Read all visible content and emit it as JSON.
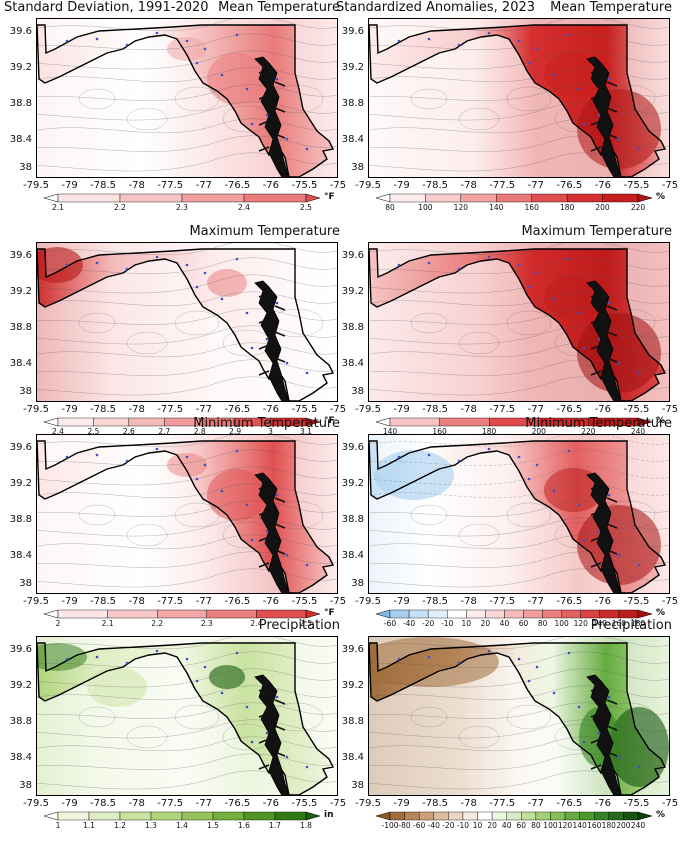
{
  "header": {
    "left_title": "Standard Deviation, 1991-2020",
    "right_title": "Standardized Anomalies, 2023"
  },
  "axes": {
    "x_ticks": [
      "-79.5",
      "-79",
      "-78.5",
      "-78",
      "-77.5",
      "-77",
      "-76.5",
      "-76",
      "-75.5",
      "-75"
    ],
    "y_ticks": [
      "39.6",
      "39.2",
      "38.8",
      "38.4",
      "38"
    ]
  },
  "panels": [
    {
      "row": 0,
      "col": 0,
      "variable": "Mean Temperature",
      "unit": "°F",
      "colorbar": [
        "2.1",
        "2.2",
        "2.3",
        "2.4",
        "2.5"
      ],
      "colors": [
        "#ffffff",
        "#fbe3e3",
        "#f6c4c4",
        "#f0a0a0",
        "#e97a7a",
        "#e05050"
      ],
      "style": "lowhigh-east"
    },
    {
      "row": 0,
      "col": 1,
      "variable": "Mean Temperature",
      "unit": "%",
      "colorbar": [
        "80",
        "100",
        "120",
        "140",
        "160",
        "180",
        "200",
        "220"
      ],
      "colors": [
        "#ffffff",
        "#fdecec",
        "#f8cccc",
        "#f1a3a3",
        "#ea7a7a",
        "#e04e4e",
        "#d62f2f",
        "#c81e1e",
        "#b01515"
      ],
      "style": "hot-east"
    },
    {
      "row": 1,
      "col": 0,
      "variable": "Maximum Temperature",
      "unit": "°F",
      "colorbar": [
        "2.4",
        "2.5",
        "2.6",
        "2.7",
        "2.8",
        "2.9",
        "3",
        "3.1"
      ],
      "colors": [
        "#ffffff",
        "#fdecec",
        "#f9d6d6",
        "#f4b9b9",
        "#ee9a9a",
        "#e77777",
        "#dd5252",
        "#cf3030",
        "#b81818"
      ],
      "style": "hot-west"
    },
    {
      "row": 1,
      "col": 1,
      "variable": "Maximum Temperature",
      "unit": "%",
      "colorbar": [
        "140",
        "160",
        "180",
        "200",
        "220",
        "240"
      ],
      "colors": [
        "#ffffff",
        "#f6c4c4",
        "#ea7f7f",
        "#e04a4a",
        "#d22a2a",
        "#bf1b1b",
        "#a01010"
      ],
      "style": "hot-east"
    },
    {
      "row": 2,
      "col": 0,
      "variable": "Minimum Temperature",
      "unit": "°F",
      "colorbar": [
        "2",
        "2.1",
        "2.2",
        "2.3",
        "2.4",
        "2.5"
      ],
      "colors": [
        "#ffffff",
        "#fde6e6",
        "#f8c8c8",
        "#f2a6a6",
        "#ea7e7e",
        "#e05050",
        "#cf2f2f"
      ],
      "style": "lowhigh-east"
    },
    {
      "row": 2,
      "col": 1,
      "variable": "Minimum Temperature",
      "unit": "%",
      "colorbar": [
        "-60",
        "-40",
        "-20",
        "-10",
        "10",
        "20",
        "40",
        "60",
        "80",
        "100",
        "120",
        "140",
        "160",
        "180"
      ],
      "colors": [
        "#7fb9e6",
        "#a6cff0",
        "#c6e0f5",
        "#e2effa",
        "#ffffff",
        "#fdecec",
        "#fad7d7",
        "#f6bcbc",
        "#f19d9d",
        "#eb7f7f",
        "#e36060",
        "#d94242",
        "#cc2c2c",
        "#bb1c1c",
        "#a51111"
      ],
      "style": "cold-west-hot-east"
    },
    {
      "row": 3,
      "col": 0,
      "variable": "Precipitation",
      "unit": "in",
      "colorbar": [
        "1",
        "1.1",
        "1.2",
        "1.3",
        "1.4",
        "1.5",
        "1.6",
        "1.7",
        "1.8"
      ],
      "colors": [
        "#ffffff",
        "#f0f6e0",
        "#dfedc2",
        "#c9e2a0",
        "#b0d47d",
        "#93c35a",
        "#72af3c",
        "#4f9728",
        "#2f7a18",
        "#1c5e10"
      ],
      "style": "green-mixed"
    },
    {
      "row": 3,
      "col": 1,
      "variable": "Precipitation",
      "unit": "%",
      "colorbar": [
        "-100",
        "-80",
        "-60",
        "-40",
        "-20",
        "-10",
        "10",
        "20",
        "40",
        "60",
        "80",
        "100",
        "120",
        "140",
        "160",
        "180",
        "200",
        "240"
      ],
      "colors": [
        "#8a5a2b",
        "#a06d3c",
        "#b7855a",
        "#cba07a",
        "#dcbd9c",
        "#ead7c2",
        "#f5ebe0",
        "#ffffff",
        "#eef7e4",
        "#d9ecc2",
        "#bfe09c",
        "#a2d078",
        "#84bf58",
        "#66ac3f",
        "#4c992e",
        "#358322",
        "#236b17",
        "#16560f",
        "#0c420a"
      ],
      "style": "brown-west-green-east"
    }
  ]
}
